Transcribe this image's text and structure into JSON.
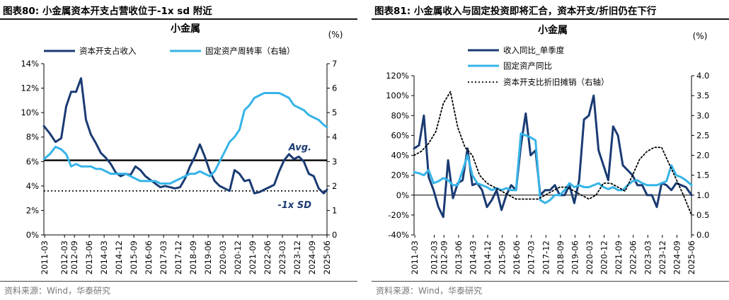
{
  "left": {
    "figure_title": "图表80:  小金属资本开支占营收位于-1x sd 附近",
    "source": "资料来源：Wind，华泰研究"
  },
  "right": {
    "figure_title": "图表81:  小金属收入与固定投资即将汇合，资本开支/折旧仍在下行",
    "source": "资料来源：Wind，华泰研究"
  },
  "chart_data": [
    {
      "type": "line",
      "title": "小金属",
      "unit_label": "(%)",
      "categories": [
        "2011-03",
        "2012-03",
        "2012-09",
        "2013-06",
        "2014-03",
        "2014-12",
        "2015-09",
        "2016-06",
        "2017-03",
        "2017-12",
        "2018-09",
        "2019-06",
        "2020-03",
        "2020-12",
        "2021-09",
        "2022-06",
        "2023-03",
        "2023-12",
        "2024-09",
        "2025-06"
      ],
      "x_start": 2011.125,
      "x_end": 2025.417,
      "y_left": {
        "min": 0,
        "max": 14,
        "ticks": [
          "0%",
          "2%",
          "4%",
          "6%",
          "8%",
          "10%",
          "12%",
          "14%"
        ]
      },
      "y_right": {
        "min": 0,
        "max": 7,
        "ticks": [
          "0",
          "1",
          "2",
          "3",
          "4",
          "5",
          "6",
          "7"
        ]
      },
      "series": [
        {
          "name": "资本开支占收入",
          "axis": "left",
          "color": "#1a3b73",
          "x": [
            2011.13,
            2011.42,
            2011.71,
            2012.0,
            2012.25,
            2012.5,
            2012.75,
            2013.0,
            2013.25,
            2013.5,
            2013.75,
            2014.0,
            2014.25,
            2014.5,
            2014.75,
            2015.0,
            2015.25,
            2015.5,
            2015.75,
            2016.0,
            2016.25,
            2016.5,
            2016.75,
            2017.0,
            2017.25,
            2017.5,
            2017.75,
            2018.0,
            2018.25,
            2018.5,
            2018.75,
            2019.0,
            2019.25,
            2019.5,
            2019.75,
            2020.0,
            2020.25,
            2020.5,
            2020.75,
            2021.0,
            2021.25,
            2021.5,
            2021.75,
            2022.0,
            2022.25,
            2022.5,
            2022.75,
            2023.0,
            2023.25,
            2023.5,
            2023.75,
            2024.0,
            2024.25,
            2024.5,
            2024.75,
            2025.0,
            2025.25,
            2025.42
          ],
          "values": [
            8.9,
            8.3,
            7.6,
            7.9,
            10.5,
            11.7,
            11.7,
            12.8,
            9.4,
            8.2,
            7.5,
            6.7,
            6.3,
            5.8,
            5.1,
            4.8,
            5.0,
            4.9,
            5.6,
            5.3,
            4.8,
            4.5,
            4.2,
            3.9,
            4.0,
            3.9,
            3.8,
            3.9,
            4.6,
            5.6,
            6.4,
            7.4,
            6.4,
            5.2,
            4.4,
            4.0,
            3.8,
            3.6,
            5.3,
            5.0,
            4.4,
            4.5,
            3.4,
            3.5,
            3.7,
            3.9,
            4.1,
            5.2,
            6.1,
            6.6,
            6.2,
            6.4,
            6.0,
            5.0,
            4.8,
            3.8,
            3.4,
            3.7
          ]
        },
        {
          "name": "固定资产周转率（右轴）",
          "axis": "right",
          "color": "#36b4e8",
          "x": [
            2011.13,
            2011.42,
            2011.71,
            2012.0,
            2012.25,
            2012.5,
            2012.75,
            2013.0,
            2013.25,
            2013.5,
            2013.75,
            2014.0,
            2014.25,
            2014.5,
            2014.75,
            2015.0,
            2015.25,
            2015.5,
            2015.75,
            2016.0,
            2016.25,
            2016.5,
            2016.75,
            2017.0,
            2017.25,
            2017.5,
            2017.75,
            2018.0,
            2018.25,
            2018.5,
            2018.75,
            2019.0,
            2019.25,
            2019.5,
            2019.75,
            2020.0,
            2020.25,
            2020.5,
            2020.75,
            2021.0,
            2021.25,
            2021.5,
            2021.75,
            2022.0,
            2022.25,
            2022.5,
            2022.75,
            2023.0,
            2023.25,
            2023.5,
            2023.75,
            2024.0,
            2024.25,
            2024.5,
            2024.75,
            2025.0,
            2025.25,
            2025.42
          ],
          "values": [
            3.1,
            3.3,
            3.6,
            3.5,
            3.3,
            2.8,
            2.9,
            2.8,
            2.8,
            2.8,
            2.7,
            2.7,
            2.6,
            2.5,
            2.5,
            2.5,
            2.5,
            2.4,
            2.3,
            2.2,
            2.2,
            2.2,
            2.2,
            2.1,
            2.1,
            2.1,
            2.2,
            2.3,
            2.4,
            2.5,
            2.5,
            2.6,
            2.5,
            2.4,
            2.6,
            3.0,
            3.4,
            3.8,
            4.0,
            4.3,
            5.1,
            5.3,
            5.6,
            5.7,
            5.8,
            5.8,
            5.8,
            5.8,
            5.7,
            5.6,
            5.3,
            5.2,
            5.1,
            4.9,
            4.8,
            4.7,
            4.5,
            4.4
          ]
        }
      ],
      "reference_lines": [
        {
          "label": "Avg.",
          "value": 6.1,
          "style": "solid",
          "color": "#000000"
        },
        {
          "label": "-1x SD",
          "value": 3.6,
          "style": "dotted",
          "color": "#000000"
        }
      ],
      "legend": "top",
      "grid": false
    },
    {
      "type": "line",
      "title": "小金属",
      "unit_label": "(%)",
      "categories": [
        "2011-03",
        "2012-03",
        "2012-09",
        "2013-06",
        "2014-03",
        "2014-12",
        "2015-09",
        "2016-06",
        "2017-03",
        "2017-12",
        "2018-09",
        "2019-06",
        "2020-03",
        "2020-12",
        "2021-09",
        "2022-06",
        "2023-03",
        "2023-12",
        "2024-09",
        "2025-06"
      ],
      "x_start": 2011.125,
      "x_end": 2025.417,
      "y_left": {
        "min": -40,
        "max": 120,
        "ticks": [
          "-40%",
          "-20%",
          "0%",
          "20%",
          "40%",
          "60%",
          "80%",
          "100%",
          "120%"
        ]
      },
      "y_right": {
        "min": 0,
        "max": 4,
        "ticks": [
          "0.0",
          "0.5",
          "1.0",
          "1.5",
          "2.0",
          "2.5",
          "3.0",
          "3.5",
          "4.0"
        ]
      },
      "series": [
        {
          "name": "收入同比_单季度",
          "axis": "left",
          "color": "#1a3b73",
          "x": [
            2011.13,
            2011.38,
            2011.63,
            2011.88,
            2012.13,
            2012.38,
            2012.63,
            2012.88,
            2013.13,
            2013.38,
            2013.63,
            2013.88,
            2014.13,
            2014.38,
            2014.63,
            2014.88,
            2015.13,
            2015.38,
            2015.63,
            2015.88,
            2016.13,
            2016.38,
            2016.63,
            2016.88,
            2017.13,
            2017.38,
            2017.63,
            2017.88,
            2018.13,
            2018.38,
            2018.63,
            2018.88,
            2019.13,
            2019.38,
            2019.63,
            2019.88,
            2020.13,
            2020.38,
            2020.63,
            2020.88,
            2021.13,
            2021.38,
            2021.63,
            2021.88,
            2022.13,
            2022.38,
            2022.63,
            2022.88,
            2023.13,
            2023.38,
            2023.63,
            2023.88,
            2024.13,
            2024.38,
            2024.63,
            2024.88,
            2025.13,
            2025.42
          ],
          "values": [
            47,
            50,
            80,
            18,
            5,
            -12,
            -22,
            35,
            -3,
            12,
            15,
            47,
            10,
            12,
            5,
            -12,
            -5,
            5,
            -15,
            0,
            10,
            5,
            50,
            82,
            40,
            45,
            0,
            5,
            5,
            10,
            0,
            0,
            10,
            -8,
            15,
            76,
            80,
            100,
            45,
            30,
            15,
            69,
            60,
            30,
            25,
            20,
            10,
            10,
            0,
            0,
            -12,
            12,
            10,
            5,
            12,
            10,
            8,
            0
          ]
        },
        {
          "name": "固定资产同比",
          "axis": "left",
          "color": "#36b4e8",
          "x": [
            2011.13,
            2011.38,
            2011.63,
            2011.88,
            2012.13,
            2012.38,
            2012.63,
            2012.88,
            2013.13,
            2013.38,
            2013.63,
            2013.88,
            2014.13,
            2014.38,
            2014.63,
            2014.88,
            2015.13,
            2015.38,
            2015.63,
            2015.88,
            2016.13,
            2016.38,
            2016.63,
            2016.88,
            2017.13,
            2017.38,
            2017.63,
            2017.88,
            2018.13,
            2018.38,
            2018.63,
            2018.88,
            2019.13,
            2019.38,
            2019.63,
            2019.88,
            2020.13,
            2020.38,
            2020.63,
            2020.88,
            2021.13,
            2021.38,
            2021.63,
            2021.88,
            2022.13,
            2022.38,
            2022.63,
            2022.88,
            2023.13,
            2023.38,
            2023.63,
            2023.88,
            2024.13,
            2024.38,
            2024.63,
            2024.88,
            2025.13,
            2025.42
          ],
          "values": [
            23,
            22,
            20,
            25,
            12,
            14,
            17,
            15,
            10,
            10,
            25,
            40,
            20,
            12,
            10,
            8,
            5,
            7,
            5,
            7,
            5,
            5,
            62,
            60,
            58,
            55,
            -5,
            -8,
            -5,
            0,
            0,
            5,
            12,
            8,
            10,
            8,
            8,
            10,
            12,
            8,
            6,
            8,
            5,
            5,
            10,
            14,
            15,
            12,
            10,
            10,
            10,
            12,
            14,
            30,
            20,
            18,
            15,
            10
          ]
        },
        {
          "name": "资本开支比折旧摊销（右轴）",
          "axis": "right",
          "color": "#000000",
          "dash": "dotted",
          "x": [
            2011.13,
            2011.5,
            2011.88,
            2012.25,
            2012.63,
            2013.0,
            2013.38,
            2013.75,
            2014.13,
            2014.5,
            2014.88,
            2015.25,
            2015.63,
            2016.0,
            2016.38,
            2016.75,
            2017.13,
            2017.5,
            2017.88,
            2018.25,
            2018.63,
            2019.0,
            2019.38,
            2019.75,
            2020.13,
            2020.5,
            2020.88,
            2021.25,
            2021.63,
            2022.0,
            2022.38,
            2022.75,
            2023.13,
            2023.5,
            2023.88,
            2024.25,
            2024.63,
            2025.0,
            2025.42
          ],
          "values": [
            2.0,
            2.1,
            2.3,
            2.6,
            3.3,
            3.6,
            2.7,
            2.2,
            2.0,
            1.5,
            1.3,
            1.2,
            1.1,
            1.0,
            0.9,
            0.9,
            0.9,
            0.9,
            1.0,
            1.1,
            1.2,
            1.2,
            1.1,
            1.0,
            0.9,
            1.0,
            1.3,
            1.3,
            1.2,
            1.1,
            1.5,
            1.9,
            2.1,
            2.2,
            2.2,
            1.8,
            1.4,
            1.0,
            0.5
          ]
        }
      ],
      "legend": "top-left",
      "grid": false
    }
  ]
}
